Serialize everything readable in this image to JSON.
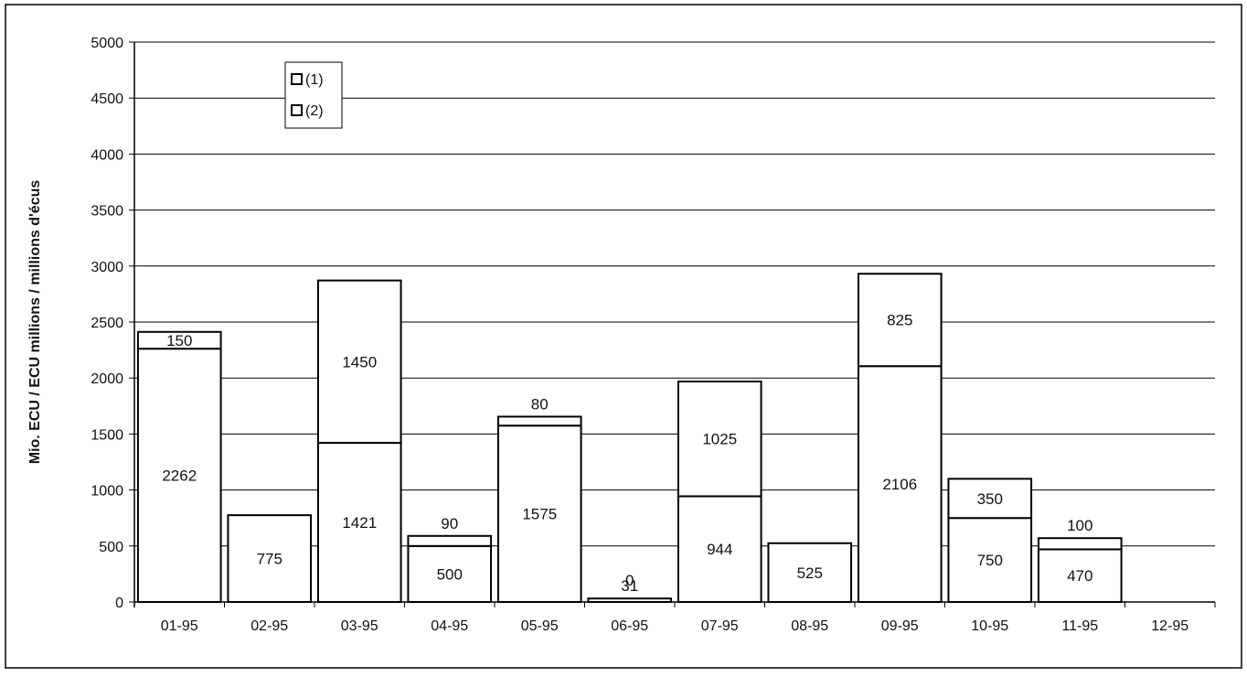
{
  "chart_data": {
    "type": "bar",
    "stacked": true,
    "title": "",
    "xlabel": "",
    "ylabel": "Mio. ECU / ECU millions / millions d'écus",
    "ylim": [
      0,
      5000
    ],
    "yticks": [
      0,
      500,
      1000,
      1500,
      2000,
      2500,
      3000,
      3500,
      4000,
      4500,
      5000
    ],
    "categories": [
      "01-95",
      "02-95",
      "03-95",
      "04-95",
      "05-95",
      "06-95",
      "07-95",
      "08-95",
      "09-95",
      "10-95",
      "11-95",
      "12-95"
    ],
    "series": [
      {
        "name": "(1)",
        "values": [
          2262,
          775,
          1421,
          500,
          1575,
          0,
          944,
          525,
          2106,
          750,
          470,
          null
        ]
      },
      {
        "name": "(2)",
        "values": [
          150,
          null,
          1450,
          90,
          80,
          31,
          1025,
          null,
          825,
          350,
          100,
          null
        ]
      }
    ],
    "grid": true,
    "legend_position": "top-left"
  }
}
